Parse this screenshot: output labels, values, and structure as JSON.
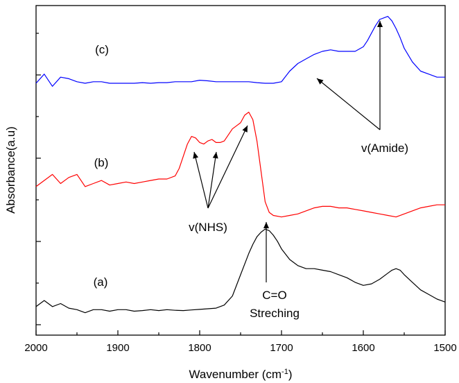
{
  "chart_data": {
    "type": "line",
    "xlabel": "Wavenumber (cm",
    "xlabel_sup": "-1",
    "xlabel_tail": ")",
    "ylabel": "Absorbance(a.u)",
    "xlim": [
      2000,
      1500
    ],
    "x_reversed": true,
    "x_ticks": [
      2000,
      1900,
      1800,
      1700,
      1600,
      1500
    ],
    "y_tick_labels_shown": false,
    "ylim": [
      0,
      10
    ],
    "grid": false,
    "series": [
      {
        "label": "(a)",
        "color": "#000000",
        "x": [
          2000,
          1990,
          1980,
          1970,
          1960,
          1950,
          1940,
          1930,
          1920,
          1910,
          1900,
          1890,
          1880,
          1870,
          1860,
          1850,
          1840,
          1830,
          1820,
          1810,
          1800,
          1790,
          1780,
          1770,
          1760,
          1750,
          1740,
          1735,
          1730,
          1725,
          1720,
          1715,
          1710,
          1705,
          1700,
          1690,
          1680,
          1670,
          1660,
          1650,
          1640,
          1630,
          1620,
          1610,
          1600,
          1590,
          1580,
          1570,
          1565,
          1560,
          1555,
          1550,
          1540,
          1530,
          1520,
          1510,
          1500
        ],
        "y": [
          0.55,
          0.75,
          0.55,
          0.65,
          0.5,
          0.45,
          0.35,
          0.45,
          0.45,
          0.4,
          0.45,
          0.45,
          0.4,
          0.42,
          0.45,
          0.42,
          0.45,
          0.43,
          0.42,
          0.44,
          0.46,
          0.48,
          0.5,
          0.6,
          0.9,
          1.6,
          2.3,
          2.6,
          2.85,
          3.0,
          3.1,
          3.05,
          2.9,
          2.7,
          2.45,
          2.1,
          1.9,
          1.8,
          1.8,
          1.75,
          1.7,
          1.6,
          1.5,
          1.35,
          1.25,
          1.3,
          1.45,
          1.65,
          1.75,
          1.8,
          1.75,
          1.6,
          1.35,
          1.1,
          0.95,
          0.8,
          0.7
        ]
      },
      {
        "label": "(b)",
        "color": "#ff0000",
        "x": [
          2000,
          1990,
          1980,
          1970,
          1960,
          1950,
          1940,
          1930,
          1920,
          1910,
          1900,
          1890,
          1880,
          1870,
          1860,
          1850,
          1840,
          1830,
          1825,
          1820,
          1815,
          1810,
          1805,
          1800,
          1795,
          1790,
          1785,
          1780,
          1775,
          1770,
          1765,
          1760,
          1755,
          1750,
          1745,
          1740,
          1735,
          1730,
          1725,
          1720,
          1715,
          1710,
          1700,
          1690,
          1680,
          1670,
          1660,
          1650,
          1640,
          1630,
          1620,
          1610,
          1600,
          1590,
          1580,
          1570,
          1560,
          1550,
          1540,
          1530,
          1520,
          1510,
          1500
        ],
        "y": [
          4.5,
          4.7,
          4.9,
          4.6,
          4.8,
          4.9,
          4.5,
          4.6,
          4.7,
          4.55,
          4.6,
          4.65,
          4.6,
          4.65,
          4.7,
          4.75,
          4.75,
          4.85,
          5.1,
          5.5,
          5.9,
          6.15,
          6.1,
          5.95,
          5.9,
          6.0,
          6.05,
          5.95,
          5.95,
          6.0,
          6.2,
          6.4,
          6.5,
          6.6,
          6.85,
          6.95,
          6.7,
          6.0,
          5.0,
          4.0,
          3.65,
          3.55,
          3.5,
          3.55,
          3.6,
          3.7,
          3.8,
          3.85,
          3.85,
          3.8,
          3.8,
          3.75,
          3.7,
          3.65,
          3.6,
          3.55,
          3.5,
          3.6,
          3.7,
          3.8,
          3.85,
          3.9,
          3.9
        ]
      },
      {
        "label": "(c)",
        "color": "#0000ff",
        "x": [
          2000,
          1990,
          1980,
          1970,
          1960,
          1950,
          1940,
          1930,
          1920,
          1910,
          1900,
          1890,
          1880,
          1870,
          1860,
          1850,
          1840,
          1830,
          1820,
          1810,
          1800,
          1790,
          1780,
          1770,
          1760,
          1750,
          1740,
          1730,
          1720,
          1710,
          1700,
          1690,
          1680,
          1670,
          1660,
          1650,
          1640,
          1630,
          1620,
          1610,
          1600,
          1595,
          1590,
          1585,
          1580,
          1575,
          1570,
          1565,
          1560,
          1555,
          1550,
          1540,
          1530,
          1520,
          1510,
          1500
        ],
        "y": [
          7.9,
          8.2,
          7.8,
          8.1,
          8.05,
          7.95,
          7.9,
          7.95,
          7.95,
          7.9,
          7.9,
          7.9,
          7.9,
          7.92,
          7.9,
          7.92,
          7.92,
          7.95,
          7.95,
          7.95,
          8.0,
          7.98,
          7.95,
          7.95,
          7.95,
          7.95,
          7.95,
          7.92,
          7.9,
          7.9,
          7.95,
          8.3,
          8.55,
          8.7,
          8.85,
          8.95,
          9.0,
          8.95,
          8.95,
          8.95,
          9.1,
          9.3,
          9.55,
          9.8,
          10.0,
          10.05,
          10.1,
          9.95,
          9.7,
          9.4,
          9.05,
          8.6,
          8.3,
          8.2,
          8.1,
          8.1
        ]
      }
    ],
    "annotations": [
      {
        "text": "v(NHS)"
      },
      {
        "text": "v(Amide)"
      },
      {
        "text": "C=O"
      },
      {
        "text": "Streching"
      }
    ]
  }
}
